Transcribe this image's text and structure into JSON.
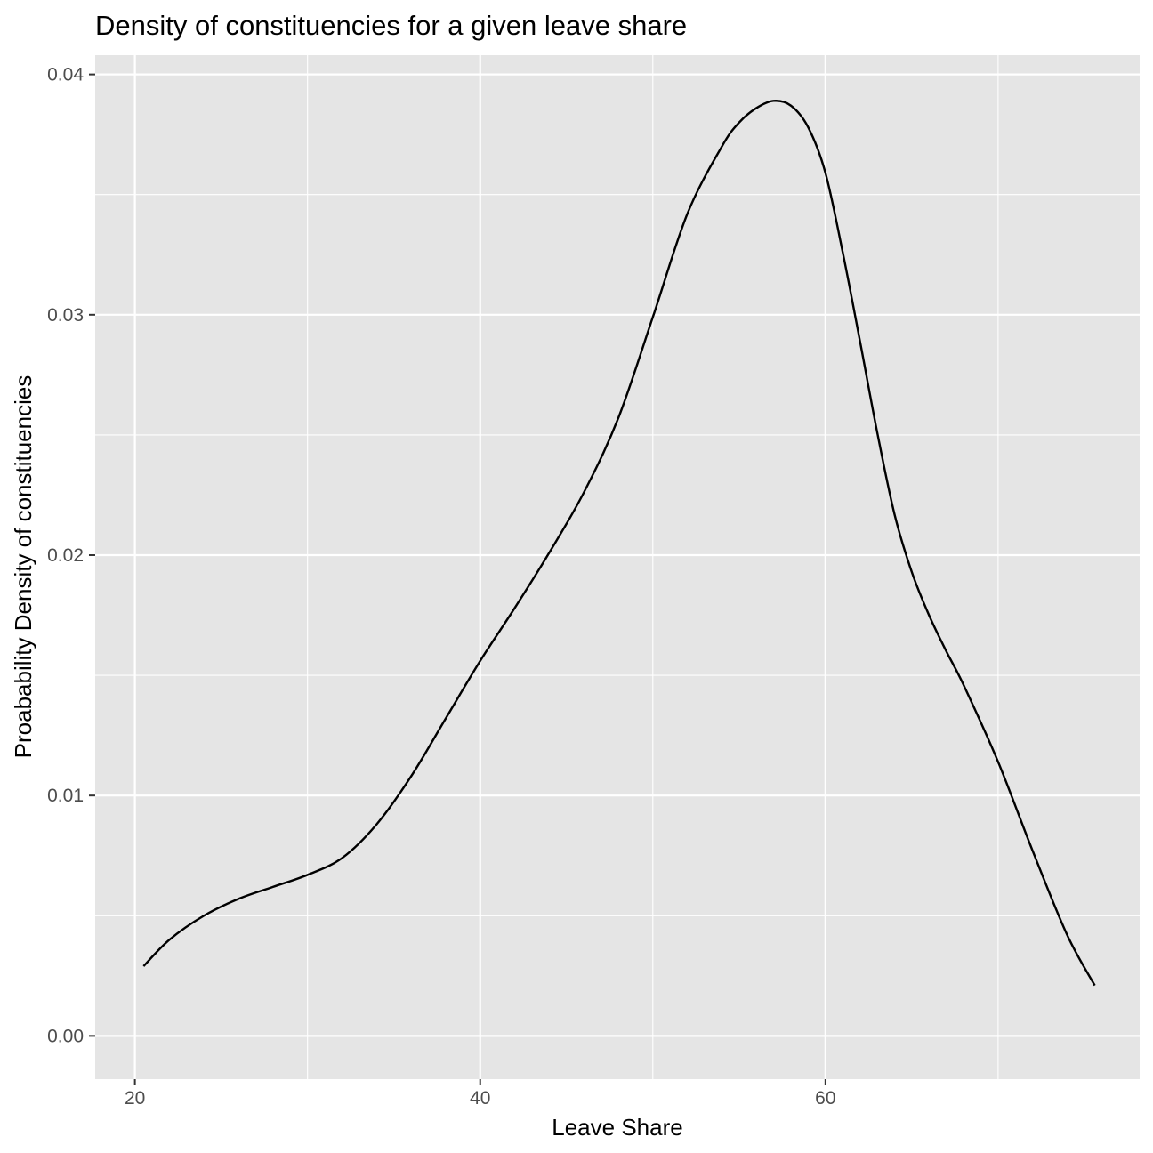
{
  "chart_data": {
    "type": "line",
    "title": "Density of constituencies for a given leave share",
    "xlabel": "Leave Share",
    "ylabel": "Proabability Density of constituencies",
    "xlim": [
      17.7,
      78.2
    ],
    "ylim": [
      -0.0018,
      0.0408
    ],
    "x_ticks": [
      20,
      40,
      60
    ],
    "x_tick_labels": [
      "20",
      "40",
      "60"
    ],
    "x_minor_ticks": [
      30,
      50,
      70
    ],
    "y_ticks": [
      0.0,
      0.01,
      0.02,
      0.03,
      0.04
    ],
    "y_tick_labels": [
      "0.00",
      "0.01",
      "0.02",
      "0.03",
      "0.04"
    ],
    "y_minor_ticks": [
      0.005,
      0.015,
      0.025,
      0.035
    ],
    "background_color": "#e5e5e5",
    "grid_color": "#ffffff",
    "line_color": "#000000",
    "series": [
      {
        "name": "density",
        "x": [
          20.5,
          22.0,
          24.0,
          26.0,
          28.0,
          30.0,
          32.0,
          34.0,
          36.0,
          38.0,
          40.0,
          42.0,
          44.0,
          46.0,
          48.0,
          50.0,
          52.0,
          54.0,
          55.0,
          56.0,
          57.0,
          58.0,
          59.0,
          60.0,
          61.0,
          62.0,
          63.0,
          64.0,
          65.0,
          66.0,
          67.0,
          68.0,
          70.0,
          72.0,
          74.0,
          75.6
        ],
        "y": [
          0.0029,
          0.004,
          0.005,
          0.0057,
          0.0062,
          0.0067,
          0.0074,
          0.0088,
          0.0108,
          0.0132,
          0.0156,
          0.0178,
          0.0201,
          0.0226,
          0.0257,
          0.0299,
          0.0342,
          0.037,
          0.038,
          0.0386,
          0.0389,
          0.0387,
          0.0378,
          0.0359,
          0.0326,
          0.0289,
          0.0251,
          0.0217,
          0.0193,
          0.0175,
          0.016,
          0.0146,
          0.0114,
          0.0077,
          0.0042,
          0.0021
        ]
      }
    ]
  }
}
